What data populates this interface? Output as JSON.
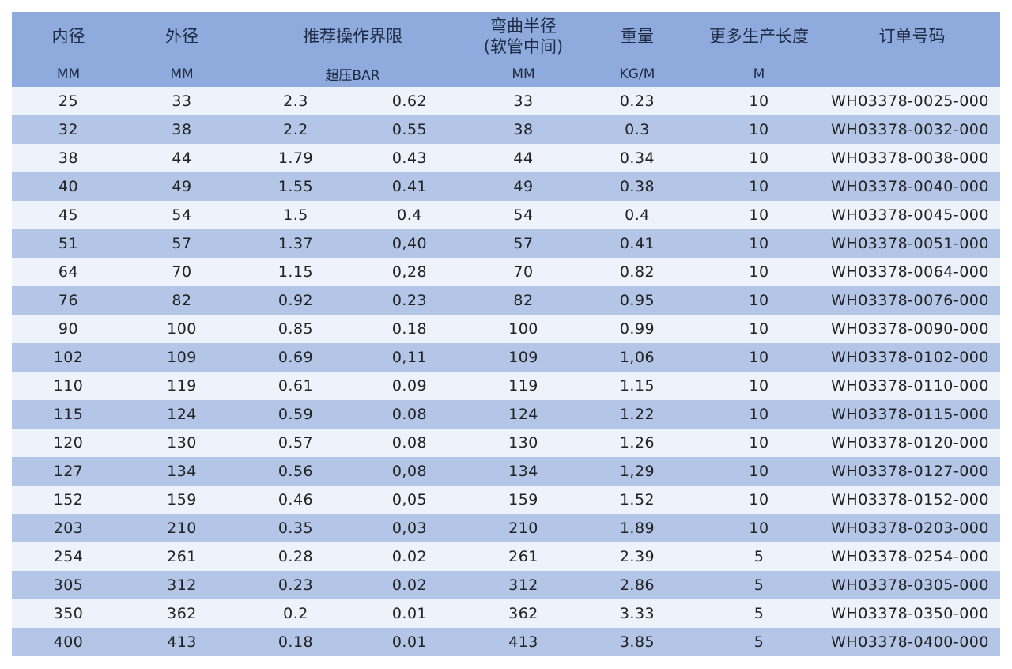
{
  "table": {
    "header_top": [
      "内径",
      "外径",
      "推荐操作界限",
      "弯曲半径\n(软管中间)",
      "重量",
      "更多生产长度",
      "订单号码"
    ],
    "header_units": [
      "MM",
      "MM",
      "超压BAR",
      "MM",
      "KG/M",
      "M"
    ],
    "rows": [
      [
        "25",
        "33",
        "2.3",
        "0.62",
        "33",
        "0.23",
        "10",
        "WH03378-0025-000"
      ],
      [
        "32",
        "38",
        "2.2",
        "0.55",
        "38",
        "0.3",
        "10",
        "WH03378-0032-000"
      ],
      [
        "38",
        "44",
        "1.79",
        "0.43",
        "44",
        "0.34",
        "10",
        "WH03378-0038-000"
      ],
      [
        "40",
        "49",
        "1.55",
        "0.41",
        "49",
        "0.38",
        "10",
        "WH03378-0040-000"
      ],
      [
        "45",
        "54",
        "1.5",
        "0.4",
        "54",
        "0.4",
        "10",
        "WH03378-0045-000"
      ],
      [
        "51",
        "57",
        "1.37",
        "0,40",
        "57",
        "0.41",
        "10",
        "WH03378-0051-000"
      ],
      [
        "64",
        "70",
        "1.15",
        "0,28",
        "70",
        "0.82",
        "10",
        "WH03378-0064-000"
      ],
      [
        "76",
        "82",
        "0.92",
        "0.23",
        "82",
        "0.95",
        "10",
        "WH03378-0076-000"
      ],
      [
        "90",
        "100",
        "0.85",
        "0.18",
        "100",
        "0.99",
        "10",
        "WH03378-0090-000"
      ],
      [
        "102",
        "109",
        "0.69",
        "0,11",
        "109",
        "1,06",
        "10",
        "WH03378-0102-000"
      ],
      [
        "110",
        "119",
        "0.61",
        "0.09",
        "119",
        "1.15",
        "10",
        "WH03378-0110-000"
      ],
      [
        "115",
        "124",
        "0.59",
        "0.08",
        "124",
        "1.22",
        "10",
        "WH03378-0115-000"
      ],
      [
        "120",
        "130",
        "0.57",
        "0.08",
        "130",
        "1.26",
        "10",
        "WH03378-0120-000"
      ],
      [
        "127",
        "134",
        "0.56",
        "0,08",
        "134",
        "1,29",
        "10",
        "WH03378-0127-000"
      ],
      [
        "152",
        "159",
        "0.46",
        "0,05",
        "159",
        "1.52",
        "10",
        "WH03378-0152-000"
      ],
      [
        "203",
        "210",
        "0.35",
        "0,03",
        "210",
        "1.89",
        "10",
        "WH03378-0203-000"
      ],
      [
        "254",
        "261",
        "0.28",
        "0.02",
        "261",
        "2.39",
        "5",
        "WH03378-0254-000"
      ],
      [
        "305",
        "312",
        "0.23",
        "0.02",
        "312",
        "2.86",
        "5",
        "WH03378-0305-000"
      ],
      [
        "350",
        "362",
        "0.2",
        "0.01",
        "362",
        "3.33",
        "5",
        "WH03378-0350-000"
      ],
      [
        "400",
        "413",
        "0.18",
        "0.01",
        "413",
        "3.85",
        "5",
        "WH03378-0400-000"
      ]
    ]
  }
}
